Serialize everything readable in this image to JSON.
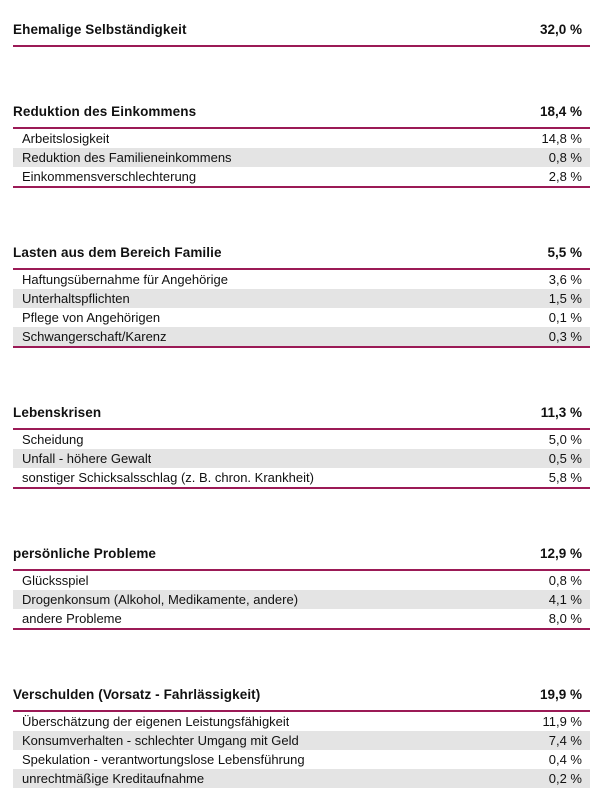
{
  "page": {
    "accent_color": "#9B1A56",
    "row_alt_color": "#E4E4E4",
    "percent_unit": "%"
  },
  "sections": [
    {
      "title": "Ehemalige Selbständigkeit",
      "value": "32,0 %",
      "items": []
    },
    {
      "title": "Reduktion des Einkommens",
      "value": "18,4 %",
      "items": [
        {
          "label": "Arbeitslosigkeit",
          "value": "14,8 %"
        },
        {
          "label": "Reduktion des Familieneinkommens",
          "value": "0,8 %"
        },
        {
          "label": "Einkommensverschlechterung",
          "value": "2,8 %"
        }
      ]
    },
    {
      "title": "Lasten aus dem Bereich Familie",
      "value": "5,5 %",
      "items": [
        {
          "label": "Haftungsübernahme für Angehörige",
          "value": "3,6 %"
        },
        {
          "label": "Unterhaltspflichten",
          "value": "1,5 %"
        },
        {
          "label": "Pflege von Angehörigen",
          "value": "0,1 %"
        },
        {
          "label": "Schwangerschaft/Karenz",
          "value": "0,3 %"
        }
      ]
    },
    {
      "title": "Lebenskrisen",
      "value": "11,3 %",
      "items": [
        {
          "label": "Scheidung",
          "value": "5,0 %"
        },
        {
          "label": "Unfall - höhere Gewalt",
          "value": "0,5 %"
        },
        {
          "label": "sonstiger Schicksalsschlag (z. B. chron. Krankheit)",
          "value": "5,8 %"
        }
      ]
    },
    {
      "title": "persönliche Probleme",
      "value": "12,9 %",
      "items": [
        {
          "label": "Glücksspiel",
          "value": "0,8 %"
        },
        {
          "label": "Drogenkonsum (Alkohol, Medikamente, andere)",
          "value": "4,1 %"
        },
        {
          "label": "andere Probleme",
          "value": "8,0 %"
        }
      ]
    },
    {
      "title": "Verschulden (Vorsatz - Fahrlässigkeit)",
      "value": "19,9 %",
      "items": [
        {
          "label": "Überschätzung der eigenen Leistungsfähigkeit",
          "value": "11,9 %"
        },
        {
          "label": "Konsumverhalten - schlechter Umgang mit Geld",
          "value": "7,4 %"
        },
        {
          "label": "Spekulation - verantwortungslose Lebensführung",
          "value": "0,4 %"
        },
        {
          "label": "unrechtmäßige Kreditaufnahme",
          "value": "0,2 %"
        }
      ]
    }
  ]
}
